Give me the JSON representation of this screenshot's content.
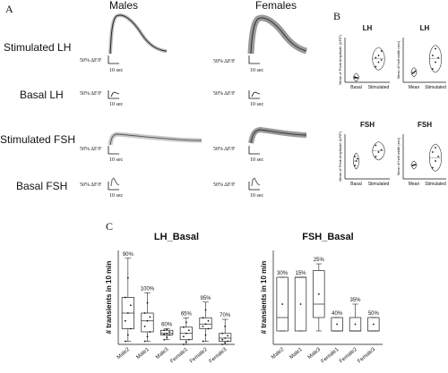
{
  "panel_letters": {
    "a": "A",
    "b": "B",
    "c": "C"
  },
  "panel_a": {
    "col_males": "Males",
    "col_females": "Females",
    "rows": [
      {
        "label": "Stimulated LH",
        "scale": "50% ΔF/F",
        "time": "10 sec"
      },
      {
        "label": "Basal LH",
        "scale": "50% ΔF/F",
        "time": "10 sec"
      },
      {
        "label": "Stimulated FSH",
        "scale": "50% ΔF/F",
        "time": "10 sec"
      },
      {
        "label": "Basal FSH",
        "scale": "50% ΔF/F",
        "time": "10 sec"
      }
    ]
  },
  "chart_data": [
    {
      "type": "violin",
      "panel": "B",
      "title": "LH",
      "ylabel": "Mean of Peak Amplitude (ΔF/F)",
      "categories": [
        "Basal",
        "Stimulated"
      ],
      "points": [
        [
          0.1,
          0.1,
          0.1,
          0.12
        ],
        [
          0.35,
          0.45,
          0.5,
          0.55,
          0.6,
          0.7
        ]
      ]
    },
    {
      "type": "violin",
      "panel": "B",
      "title": "LH",
      "ylabel": "Mean of half width (sec)",
      "categories": [
        "Mean",
        "Stimulated"
      ],
      "points": [
        [
          0.2,
          0.22,
          0.25
        ],
        [
          0.3,
          0.45,
          0.55,
          0.6,
          0.75
        ]
      ]
    },
    {
      "type": "violin",
      "panel": "B",
      "title": "FSH",
      "ylabel": "Mean of Peak Amplitude (ΔF/F)",
      "categories": [
        "Basal",
        "Stimulated"
      ],
      "points": [
        [
          0.3,
          0.4,
          0.45,
          0.5
        ],
        [
          0.5,
          0.6,
          0.65,
          0.75
        ]
      ]
    },
    {
      "type": "violin",
      "panel": "B",
      "title": "FSH",
      "ylabel": "Mean of half width (sec)",
      "categories": [
        "Mean",
        "Stimulated"
      ],
      "points": [
        [
          0.3,
          0.31,
          0.32
        ],
        [
          0.25,
          0.4,
          0.5,
          0.6,
          0.7
        ]
      ]
    },
    {
      "type": "box",
      "panel": "C",
      "title": "LH_Basal",
      "ylabel": "# transients in 10 min",
      "categories": [
        "Male2",
        "Male1",
        "Male3",
        "Female1",
        "Female2",
        "Female3"
      ],
      "percent_labels": [
        "90%",
        "100%",
        "60%",
        "65%",
        "95%",
        "70%"
      ],
      "boxes": [
        {
          "min": 2,
          "q1": 10,
          "median": 20,
          "q3": 30,
          "max": 55
        },
        {
          "min": 2,
          "q1": 8,
          "median": 15,
          "q3": 20,
          "max": 33
        },
        {
          "min": 3,
          "q1": 6,
          "median": 7,
          "q3": 9,
          "max": 10
        },
        {
          "min": 0,
          "q1": 3,
          "median": 7,
          "q3": 11,
          "max": 17
        },
        {
          "min": 2,
          "q1": 10,
          "median": 13,
          "q3": 17,
          "max": 27
        },
        {
          "min": 0,
          "q1": 2,
          "median": 4,
          "q3": 7,
          "max": 16
        }
      ]
    },
    {
      "type": "box",
      "panel": "C",
      "title": "FSH_Basal",
      "ylabel": "# transients in 10 min",
      "categories": [
        "Male2",
        "Male1",
        "Male3",
        "Female1",
        "Female2",
        "Female3"
      ],
      "percent_labels": [
        "30%",
        "15%",
        "25%",
        "40%",
        "35%",
        "50%"
      ],
      "boxes": [
        {
          "min": 1,
          "q1": 1,
          "median": 2,
          "q3": 5,
          "max": 5
        },
        {
          "min": 1,
          "q1": 1,
          "median": 5,
          "q3": 5,
          "max": 5
        },
        {
          "min": 1,
          "q1": 2,
          "median": 3,
          "q3": 5.5,
          "max": 6
        },
        {
          "min": 1,
          "q1": 1,
          "median": 1,
          "q3": 2,
          "max": 2
        },
        {
          "min": 1,
          "q1": 1,
          "median": 1,
          "q3": 2,
          "max": 3
        },
        {
          "min": 1,
          "q1": 1,
          "median": 1,
          "q3": 2,
          "max": 2
        }
      ]
    }
  ]
}
